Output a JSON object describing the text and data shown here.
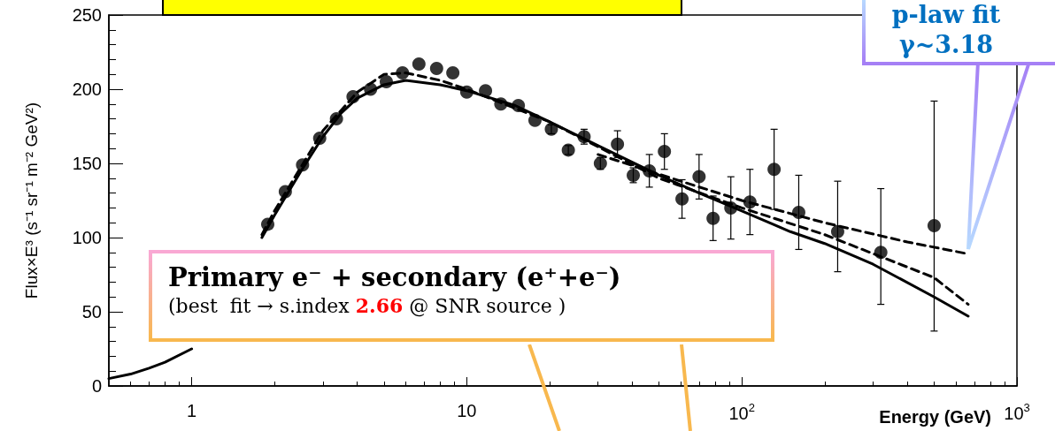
{
  "chart_data": {
    "type": "scatter",
    "xlabel": "Energy (GeV)",
    "ylabel": "Flux×E³ (s⁻¹ sr⁻¹ m⁻² GeV²)",
    "log": "x",
    "xlim": [
      0.5,
      1000
    ],
    "ylim": [
      0,
      250
    ],
    "xticks": [
      1,
      10,
      {
        "value": 100,
        "label": "10$^{2}$"
      },
      {
        "value": 1000,
        "label": "10$^{3}$"
      }
    ],
    "yticks": [
      0,
      50,
      100,
      150,
      200,
      250
    ],
    "grid": false,
    "series": [
      {
        "type": "line",
        "color": "#000000",
        "line_style": "solid",
        "marker": "none",
        "x": [
          0.5,
          0.6,
          0.7,
          0.8,
          1,
          1.2,
          1.5,
          1.8,
          2,
          2.5,
          3,
          3.5,
          4,
          5,
          6,
          8,
          10,
          15,
          20,
          30,
          50,
          70,
          100,
          150,
          200,
          300,
          500,
          665
        ],
        "values": [
          5,
          8,
          12,
          16,
          25,
          null,
          null,
          100,
          115,
          145,
          168,
          184,
          194,
          203,
          206,
          203,
          199,
          189,
          178,
          162,
          142,
          130,
          118,
          104,
          96,
          82,
          60,
          47
        ]
      },
      {
        "type": "line",
        "color": "#000000",
        "line_style": "dashed",
        "marker": "none",
        "x": [
          1.8,
          2,
          3,
          4,
          5,
          6,
          8,
          10,
          20,
          50,
          100,
          200,
          500,
          665
        ],
        "values": [
          102,
          118,
          172,
          198,
          210,
          211,
          206,
          200,
          178,
          140,
          120,
          102,
          73,
          55
        ]
      },
      {
        "type": "line",
        "color": "#000000",
        "line_style": "dashed",
        "marker": "none",
        "x": [
          30,
          60,
          100,
          200,
          400,
          665
        ],
        "values": [
          156,
          138,
          125,
          110,
          97,
          89
        ]
      },
      {
        "color": "#000000",
        "marker": "circle",
        "x": [
          1.89,
          2.19,
          2.53,
          2.92,
          3.36,
          3.86,
          4.47,
          5.1,
          5.84,
          6.7,
          7.77,
          8.9,
          10,
          11.7,
          13.3,
          15.4,
          17.7,
          20.3,
          23.4,
          26.7,
          30.6,
          35.3,
          40.3,
          46.1,
          52.3,
          60.6,
          69.9,
          78.6,
          91.2,
          107,
          131,
          161,
          223,
          320,
          500
        ],
        "values": [
          109,
          131,
          149,
          167,
          180,
          195,
          200,
          205,
          211,
          217,
          214,
          211,
          198,
          199,
          190,
          189,
          179,
          173,
          159,
          168,
          150,
          163,
          142,
          145,
          158,
          126,
          141,
          113,
          120,
          124,
          146,
          117,
          104,
          90,
          108
        ],
        "errors": [
          null,
          null,
          null,
          null,
          null,
          null,
          null,
          null,
          null,
          null,
          null,
          null,
          null,
          null,
          null,
          null,
          null,
          3,
          3,
          5,
          4,
          9,
          5,
          11,
          12,
          13,
          15,
          15,
          21,
          22,
          27,
          25,
          [
            77,
            138
          ],
          [
            55,
            133
          ],
          [
            37,
            192
          ]
        ]
      }
    ],
    "annotations": [
      "Primary e⁻ + secondary (e⁺+e⁻)",
      "(best  fit → s.index ",
      "2.66",
      " @ SNR source )",
      "p-law fit",
      "γ~3.18"
    ]
  }
}
